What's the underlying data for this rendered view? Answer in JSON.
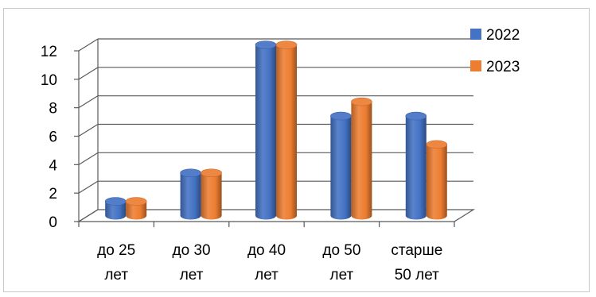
{
  "chart_data": {
    "type": "bar",
    "style": "3d-cylinder",
    "categories": [
      [
        "до 25",
        "лет"
      ],
      [
        "до 30",
        "лет"
      ],
      [
        "до 40",
        "лет"
      ],
      [
        "до 50",
        "лет"
      ],
      [
        "старше",
        "50 лет"
      ]
    ],
    "series": [
      {
        "name": "2022",
        "values": [
          1,
          3,
          12,
          7,
          7
        ],
        "color": "#4472c4"
      },
      {
        "name": "2023",
        "values": [
          1,
          3,
          12,
          8,
          5
        ],
        "color": "#ed7d31"
      }
    ],
    "ylim": [
      0,
      12
    ],
    "yticks": [
      "0",
      "2",
      "4",
      "6",
      "8",
      "10",
      "12"
    ],
    "grid": true,
    "legend_position": "right",
    "title": "",
    "xlabel": "",
    "ylabel": ""
  }
}
